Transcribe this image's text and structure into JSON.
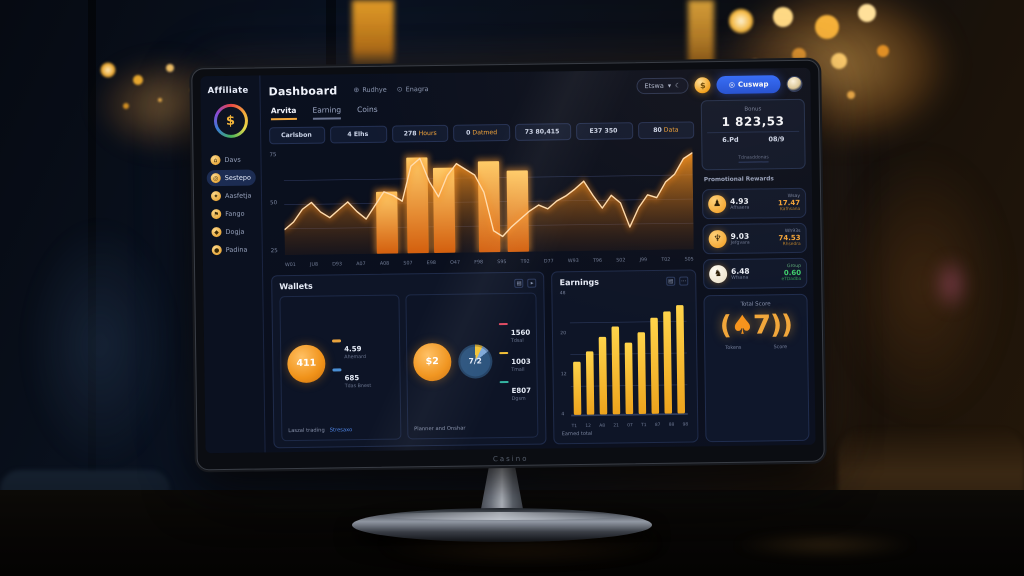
{
  "scene": {
    "monitor_brand": "Casino"
  },
  "sidebar": {
    "logo_text": "Affiliate",
    "logo_symbol": "$",
    "items": [
      {
        "label": "Davs",
        "icon_glyph": "⌂"
      },
      {
        "label": "Sestepo",
        "icon_glyph": "◎",
        "active": true
      },
      {
        "label": "Aasfetja",
        "icon_glyph": "✦"
      },
      {
        "label": "Fango",
        "icon_glyph": "⚑"
      },
      {
        "label": "Dogja",
        "icon_glyph": "◆"
      },
      {
        "label": "Padina",
        "icon_glyph": "●"
      }
    ]
  },
  "header": {
    "title": "Dashboard",
    "menu": [
      {
        "label": "Rudhye",
        "icon": "⊕"
      },
      {
        "label": "Enagra",
        "icon": "⊙"
      }
    ],
    "dropdown_label": "Etswa",
    "dropdown_chevron": "▾",
    "dropdown_moon": "☾",
    "coin_symbol": "$",
    "primary_button": "Cuswap",
    "primary_button_icon": "◎"
  },
  "tabs": [
    {
      "label": "Arvita",
      "active": true
    },
    {
      "label": "Earning"
    },
    {
      "label": "Coins"
    }
  ],
  "stat_pills": [
    {
      "text": "Carlsbon",
      "accent": ""
    },
    {
      "text": "4 Elhs",
      "accent": ""
    },
    {
      "text": "278",
      "accent": "Hours"
    },
    {
      "text": "0",
      "accent": "Datmed"
    },
    {
      "text": "73 80,415",
      "accent": ""
    },
    {
      "text": "E37 350",
      "accent": ""
    },
    {
      "text": "80",
      "accent": "Data"
    }
  ],
  "chart_data": [
    {
      "type": "area",
      "title": "Main performance chart",
      "y_ticks": [
        "75",
        "50",
        "25"
      ],
      "ylim": [
        0,
        100
      ],
      "x_labels": [
        "W01",
        "JU8",
        "D93",
        "A07",
        "A08",
        "S07",
        "E98",
        "O47",
        "F98",
        "S95",
        "T92",
        "D77",
        "W93",
        "T96",
        "S02",
        "J99",
        "T02",
        "S05"
      ],
      "line_values": [
        24,
        32,
        45,
        52,
        42,
        36,
        44,
        52,
        42,
        34,
        48,
        62,
        58,
        52,
        88,
        96,
        72,
        56,
        78,
        90,
        84,
        78,
        60,
        20,
        14,
        24,
        32,
        40,
        46,
        42,
        50,
        55,
        62,
        70,
        55,
        42,
        55,
        47,
        22,
        42,
        55,
        52,
        68,
        76,
        92,
        98
      ],
      "bars": [
        {
          "pos": 0.225,
          "h": 62
        },
        {
          "pos": 0.3,
          "h": 97
        },
        {
          "pos": 0.365,
          "h": 86
        },
        {
          "pos": 0.475,
          "h": 92
        },
        {
          "pos": 0.545,
          "h": 82
        }
      ],
      "grid": true,
      "accent": "#ff9a2e"
    },
    {
      "type": "bar",
      "title": "Earnings",
      "values": [
        52,
        62,
        76,
        86,
        70,
        80,
        94,
        100,
        106
      ],
      "x_labels": [
        "T1",
        "12",
        "A8",
        "21",
        "07",
        "T1",
        "87",
        "88",
        "98"
      ],
      "y_ticks": [
        "48",
        "20",
        "12",
        "4"
      ],
      "ylim": [
        0,
        115
      ],
      "bar_color": "#f7b52c",
      "grid": true,
      "caption": "Earned total"
    }
  ],
  "wallets": {
    "title": "Wallets",
    "left": {
      "circle_value": "411",
      "legend": [
        {
          "color": "#e8a33d",
          "value": "4.59",
          "label": "Ahemard"
        },
        {
          "color": "#4a8fd4",
          "value": "685",
          "label": "Tdas Bnest"
        }
      ],
      "caption": "Laszal trading",
      "link": "Stresaxo"
    },
    "right": {
      "circle_value": "$2",
      "donut_value": "7/2",
      "legend": [
        {
          "color": "#e04a62",
          "value": "1560",
          "label": "Tdsal"
        },
        {
          "color": "#f2c037",
          "value": "1003",
          "label": "Tmall"
        },
        {
          "color": "#35b5a2",
          "value": "E807",
          "label": "Dgsm"
        }
      ],
      "caption": "Planner and Onshar"
    }
  },
  "earnings_panel": {
    "title": "Earnings"
  },
  "right_panel": {
    "bonus_label": "Bonus",
    "bonus_value": "1 823,53",
    "bonus_subs": [
      {
        "value": "6.Pd"
      },
      {
        "value": "08/9"
      }
    ],
    "bonus_footnote": "Tdnasddonas",
    "section_title": "Promotional Rewards",
    "rewards": [
      {
        "icon_glyph": "♟",
        "icon_bg": "radial-gradient(circle at 35% 30%,#ffd27a,#f09a1d)",
        "value": "4.93",
        "sub": "Affsaera",
        "right_label": "Wsay",
        "right_value": "17.47",
        "right_sub": "Kafhsana"
      },
      {
        "icon_glyph": "♆",
        "icon_bg": "radial-gradient(circle at 35% 30%,#ffd27a,#f09a1d)",
        "value": "9.03",
        "sub": "Jefgvara",
        "right_label": "Wh93s",
        "right_value": "74.53",
        "right_sub": "Rhsedra"
      },
      {
        "icon_glyph": "♞",
        "icon_bg": "radial-gradient(circle at 35% 30%,#fffdf5,#e8dcc2)",
        "value": "6.48",
        "sub": "Wfsana",
        "right_label": "Group",
        "right_value": "0.60",
        "right_sub": "eTDadba",
        "tone": "green"
      }
    ],
    "total_score": {
      "title": "Total Score",
      "open": "(",
      "spade": "♠",
      "rest": "7))",
      "labels": [
        {
          "label": "Tokens"
        },
        {
          "label": "Score"
        }
      ]
    }
  }
}
